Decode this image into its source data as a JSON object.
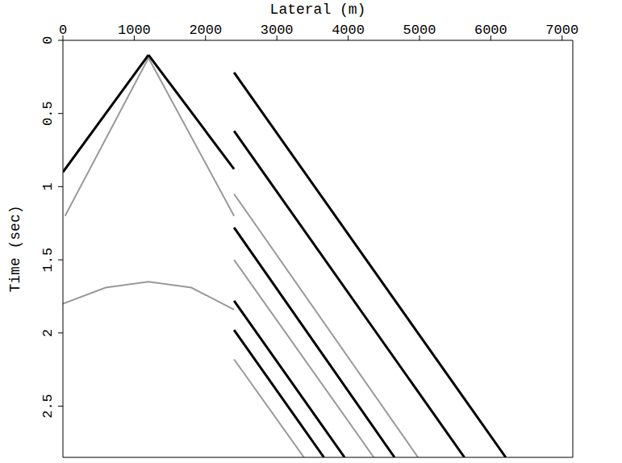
{
  "chart_data": {
    "type": "line",
    "x_label": "Lateral (m)",
    "y_label": "Time (sec)",
    "xlim": [
      0,
      7150
    ],
    "xticks": [
      0,
      1000,
      2000,
      3000,
      4000,
      5000,
      6000,
      7000
    ],
    "ylim": [
      0,
      2.85
    ],
    "yticks": [
      0,
      0.5,
      1,
      1.5,
      2,
      2.5
    ],
    "grid": false,
    "series": [
      {
        "color": "#999999",
        "x": [
          30,
          1200
        ],
        "values": [
          1.2,
          0.12
        ]
      },
      {
        "color": "#999999",
        "x": [
          1200,
          2400
        ],
        "values": [
          0.12,
          1.2
        ]
      },
      {
        "color": "#000000",
        "x": [
          0,
          1200
        ],
        "values": [
          0.9,
          0.1
        ]
      },
      {
        "color": "#000000",
        "x": [
          1200,
          2400
        ],
        "values": [
          0.1,
          0.88
        ]
      },
      {
        "color": "#999999",
        "x": [
          0,
          600,
          1200,
          1800,
          2400
        ],
        "values": [
          1.8,
          1.69,
          1.65,
          1.69,
          1.84
        ]
      },
      {
        "color": "#000000",
        "x": [
          2400,
          6210
        ],
        "values": [
          0.22,
          2.85
        ]
      },
      {
        "color": "#000000",
        "x": [
          2400,
          5630
        ],
        "values": [
          0.62,
          2.85
        ]
      },
      {
        "color": "#999999",
        "x": [
          2400,
          4980
        ],
        "values": [
          1.05,
          2.85
        ]
      },
      {
        "color": "#000000",
        "x": [
          2400,
          4650
        ],
        "values": [
          1.28,
          2.85
        ]
      },
      {
        "color": "#999999",
        "x": [
          2400,
          4360
        ],
        "values": [
          1.5,
          2.85
        ]
      },
      {
        "color": "#000000",
        "x": [
          2400,
          3950
        ],
        "values": [
          1.78,
          2.85
        ]
      },
      {
        "color": "#000000",
        "x": [
          2400,
          3660
        ],
        "values": [
          1.98,
          2.85
        ]
      },
      {
        "color": "#999999",
        "x": [
          2400,
          3380
        ],
        "values": [
          2.18,
          2.85
        ]
      }
    ]
  }
}
